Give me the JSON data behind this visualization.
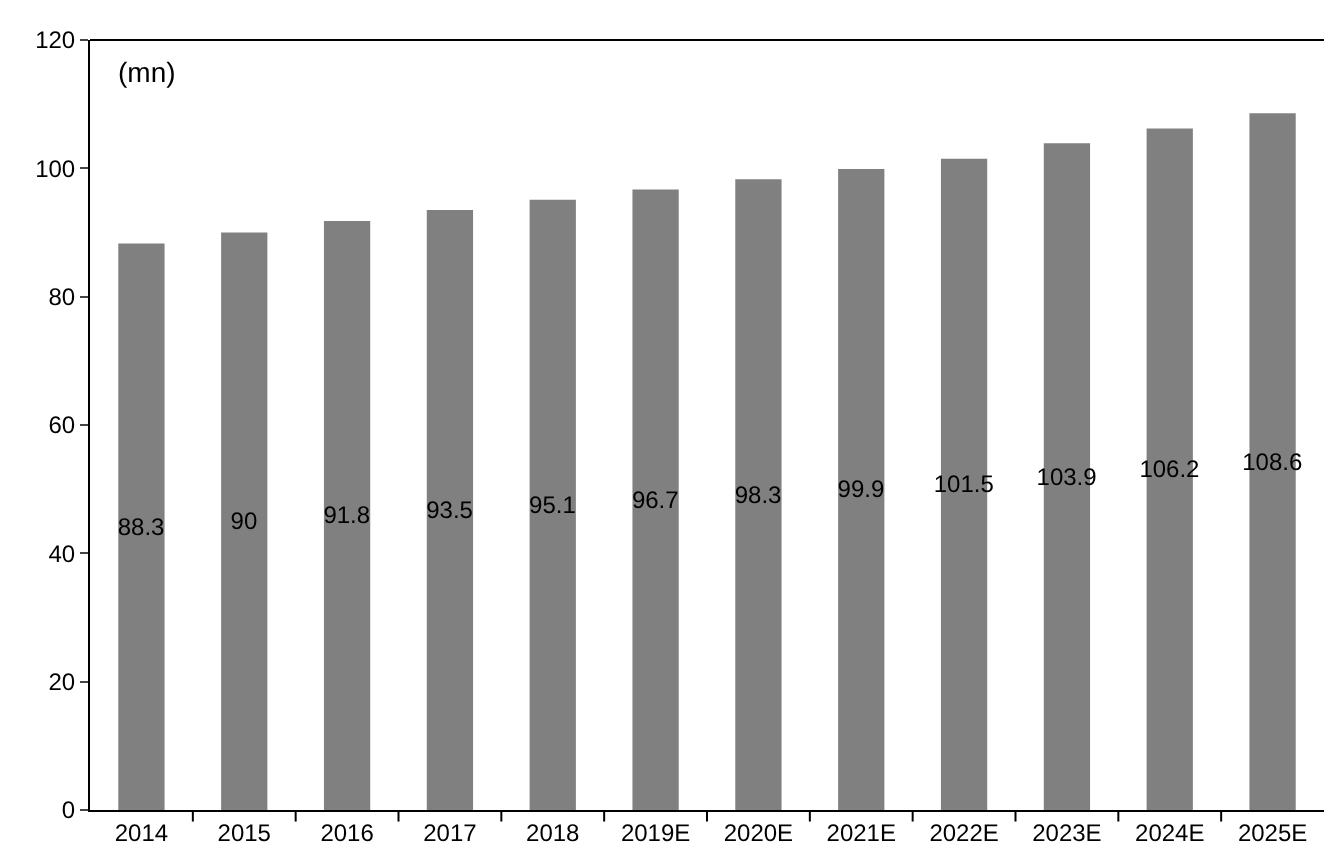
{
  "chart_data": {
    "type": "bar",
    "categories": [
      "2014",
      "2015",
      "2016",
      "2017",
      "2018",
      "2019E",
      "2020E",
      "2021E",
      "2022E",
      "2023E",
      "2024E",
      "2025E"
    ],
    "values": [
      88.3,
      90,
      91.8,
      93.5,
      95.1,
      96.7,
      98.3,
      99.9,
      101.5,
      103.9,
      106.2,
      108.6
    ],
    "color": "#808080",
    "ylim": [
      0,
      120
    ],
    "yticks": [
      0,
      20,
      40,
      60,
      80,
      100,
      120
    ],
    "grid": false,
    "legend": false,
    "data_labels": true,
    "annotations": [
      "(mn)"
    ]
  }
}
